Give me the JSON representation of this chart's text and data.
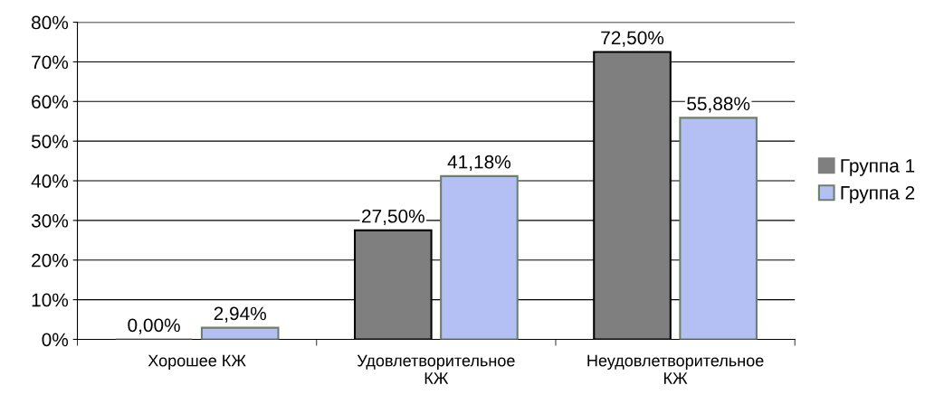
{
  "chart_data": {
    "type": "bar",
    "categories": [
      "Хорошее КЖ",
      "Удовлетворительное КЖ",
      "Неудовлетворительное КЖ"
    ],
    "series": [
      {
        "name": "Группа 1",
        "color": "#7f7f7f",
        "values": [
          0,
          27.5,
          72.5
        ],
        "value_labels": [
          "0,00%",
          "27,50%",
          "72,50%"
        ]
      },
      {
        "name": "Группа 2",
        "color": "#b4c0f4",
        "values": [
          2.94,
          41.18,
          55.88
        ],
        "value_labels": [
          "2,94%",
          "41,18%",
          "55,88%"
        ]
      }
    ],
    "ylim": [
      0,
      80
    ],
    "yticks": [
      {
        "value": 0,
        "label": "0%"
      },
      {
        "value": 10,
        "label": "10%"
      },
      {
        "value": 20,
        "label": "20%"
      },
      {
        "value": 30,
        "label": "30%"
      },
      {
        "value": 40,
        "label": "40%"
      },
      {
        "value": 50,
        "label": "50%"
      },
      {
        "value": 60,
        "label": "60%"
      },
      {
        "value": 70,
        "label": "70%"
      },
      {
        "value": 80,
        "label": "80%"
      }
    ],
    "grid": "y",
    "legend": "right"
  }
}
